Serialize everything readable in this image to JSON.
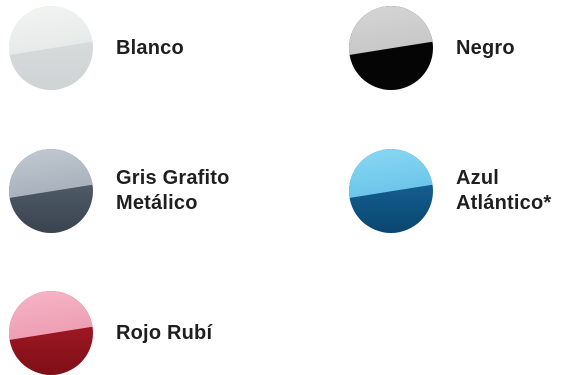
{
  "colors": [
    {
      "id": "blanco",
      "lines": [
        "Blanco"
      ]
    },
    {
      "id": "negro",
      "lines": [
        "Negro"
      ]
    },
    {
      "id": "grafito",
      "lines": [
        "Gris Grafito",
        "Metálico"
      ]
    },
    {
      "id": "azul",
      "lines": [
        "Azul",
        "Atlántico*"
      ]
    },
    {
      "id": "rojo",
      "lines": [
        "Rojo Rubí"
      ]
    }
  ]
}
